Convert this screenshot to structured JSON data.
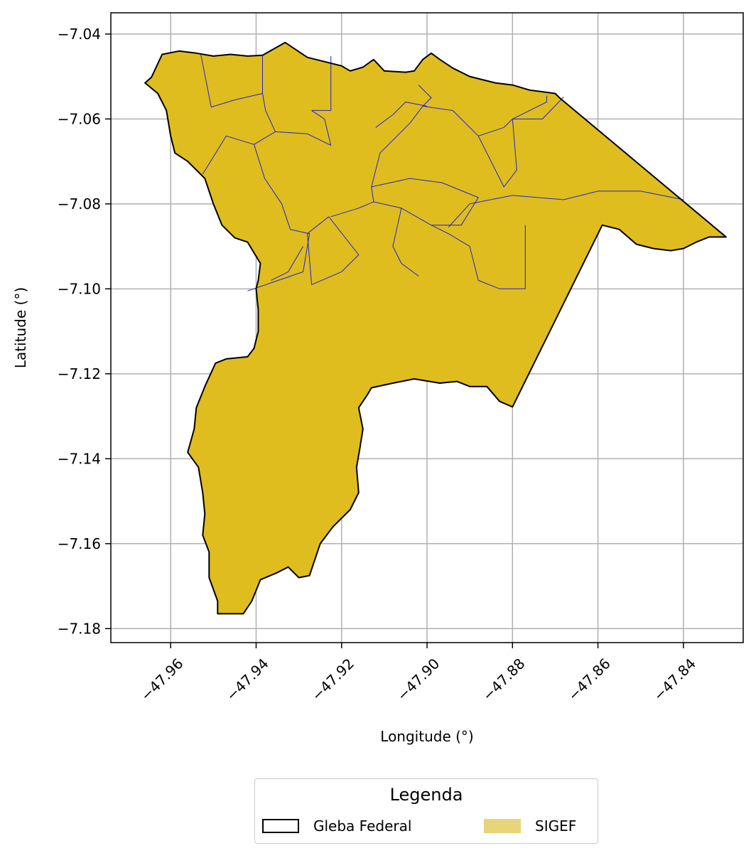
{
  "map": {
    "xlabel": "Longitude (°)",
    "ylabel": "Latitude (°)",
    "xlim": [
      -47.974,
      -47.826
    ],
    "ylim": [
      -7.1833,
      -7.035
    ],
    "x_ticks": [
      {
        "value": -47.96,
        "label": "−47.96"
      },
      {
        "value": -47.94,
        "label": "−47.94"
      },
      {
        "value": -47.92,
        "label": "−47.92"
      },
      {
        "value": -47.9,
        "label": "−47.90"
      },
      {
        "value": -47.88,
        "label": "−47.88"
      },
      {
        "value": -47.86,
        "label": "−47.86"
      },
      {
        "value": -47.84,
        "label": "−47.84"
      }
    ],
    "y_ticks": [
      {
        "value": -7.04,
        "label": "−7.04"
      },
      {
        "value": -7.06,
        "label": "−7.06"
      },
      {
        "value": -7.08,
        "label": "−7.08"
      },
      {
        "value": -7.1,
        "label": "−7.10"
      },
      {
        "value": -7.12,
        "label": "−7.12"
      },
      {
        "value": -7.14,
        "label": "−7.14"
      },
      {
        "value": -7.16,
        "label": "−7.16"
      },
      {
        "value": -7.18,
        "label": "−7.18"
      }
    ],
    "grid": true,
    "colors": {
      "sigef_fill": "#dfbd1f",
      "sigef_legend": "#e8d57a",
      "parcel_lines": "#2222cc",
      "gleba_outline": "#000000",
      "grid": "#b0b0b0"
    },
    "gleba_outline": [
      [
        -47.9645,
        -7.0502
      ],
      [
        -47.962,
        -7.0448
      ],
      [
        -47.958,
        -7.044
      ],
      [
        -47.954,
        -7.0445
      ],
      [
        -47.95,
        -7.0452
      ],
      [
        -47.946,
        -7.0448
      ],
      [
        -47.942,
        -7.0452
      ],
      [
        -47.9385,
        -7.045
      ],
      [
        -47.9332,
        -7.042
      ],
      [
        -47.928,
        -7.0455
      ],
      [
        -47.92,
        -7.0475
      ],
      [
        -47.918,
        -7.0487
      ],
      [
        -47.915,
        -7.0478
      ],
      [
        -47.9125,
        -7.046
      ],
      [
        -47.91,
        -7.0487
      ],
      [
        -47.905,
        -7.049
      ],
      [
        -47.903,
        -7.0487
      ],
      [
        -47.901,
        -7.046
      ],
      [
        -47.899,
        -7.0445
      ],
      [
        -47.897,
        -7.046
      ],
      [
        -47.894,
        -7.048
      ],
      [
        -47.89,
        -7.05
      ],
      [
        -47.884,
        -7.0515
      ],
      [
        -47.88,
        -7.052
      ],
      [
        -47.876,
        -7.0532
      ],
      [
        -47.87,
        -7.054
      ],
      [
        -47.869,
        -7.055
      ],
      [
        -47.83,
        -7.0878
      ],
      [
        -47.834,
        -7.0878
      ],
      [
        -47.837,
        -7.089
      ],
      [
        -47.84,
        -7.0905
      ],
      [
        -47.843,
        -7.091
      ],
      [
        -47.847,
        -7.0905
      ],
      [
        -47.851,
        -7.0895
      ],
      [
        -47.855,
        -7.086
      ],
      [
        -47.859,
        -7.085
      ],
      [
        -47.88,
        -7.1278
      ],
      [
        -47.883,
        -7.1265
      ],
      [
        -47.886,
        -7.123
      ],
      [
        -47.89,
        -7.123
      ],
      [
        -47.893,
        -7.1218
      ],
      [
        -47.897,
        -7.1222
      ],
      [
        -47.903,
        -7.1212
      ],
      [
        -47.908,
        -7.1222
      ],
      [
        -47.913,
        -7.1233
      ],
      [
        -47.914,
        -7.125
      ],
      [
        -47.916,
        -7.128
      ],
      [
        -47.915,
        -7.133
      ],
      [
        -47.9158,
        -7.138
      ],
      [
        -47.9165,
        -7.142
      ],
      [
        -47.916,
        -7.148
      ],
      [
        -47.918,
        -7.152
      ],
      [
        -47.922,
        -7.156
      ],
      [
        -47.925,
        -7.16
      ],
      [
        -47.9275,
        -7.1675
      ],
      [
        -47.93,
        -7.168
      ],
      [
        -47.9325,
        -7.1655
      ],
      [
        -47.935,
        -7.1668
      ],
      [
        -47.939,
        -7.1685
      ],
      [
        -47.941,
        -7.1735
      ],
      [
        -47.943,
        -7.1765
      ],
      [
        -47.949,
        -7.1765
      ],
      [
        -47.949,
        -7.1735
      ],
      [
        -47.951,
        -7.168
      ],
      [
        -47.951,
        -7.162
      ],
      [
        -47.9525,
        -7.158
      ],
      [
        -47.952,
        -7.153
      ],
      [
        -47.9525,
        -7.148
      ],
      [
        -47.9535,
        -7.142
      ],
      [
        -47.956,
        -7.1385
      ],
      [
        -47.9545,
        -7.133
      ],
      [
        -47.954,
        -7.128
      ],
      [
        -47.952,
        -7.123
      ],
      [
        -47.9495,
        -7.1175
      ],
      [
        -47.947,
        -7.1165
      ],
      [
        -47.942,
        -7.116
      ],
      [
        -47.9405,
        -7.114
      ],
      [
        -47.9395,
        -7.11
      ],
      [
        -47.9395,
        -7.105
      ],
      [
        -47.94,
        -7.1
      ],
      [
        -47.9395,
        -7.098
      ],
      [
        -47.939,
        -7.094
      ],
      [
        -47.942,
        -7.089
      ],
      [
        -47.945,
        -7.088
      ],
      [
        -47.948,
        -7.085
      ],
      [
        -47.95,
        -7.08
      ],
      [
        -47.952,
        -7.074
      ],
      [
        -47.956,
        -7.07
      ],
      [
        -47.959,
        -7.068
      ],
      [
        -47.96,
        -7.064
      ],
      [
        -47.961,
        -7.058
      ],
      [
        -47.963,
        -7.054
      ],
      [
        -47.966,
        -7.0515
      ],
      [
        -47.9645,
        -7.0502
      ]
    ],
    "parcel_lines": [
      [
        [
          -47.953,
          -7.0445
        ],
        [
          -47.9505,
          -7.0572
        ],
        [
          -47.945,
          -7.0555
        ],
        [
          -47.9385,
          -7.054
        ]
      ],
      [
        [
          -47.9385,
          -7.045
        ],
        [
          -47.9385,
          -7.054
        ],
        [
          -47.9378,
          -7.058
        ],
        [
          -47.9355,
          -7.063
        ],
        [
          -47.928,
          -7.0635
        ],
        [
          -47.9225,
          -7.0662
        ],
        [
          -47.924,
          -7.06
        ],
        [
          -47.927,
          -7.058
        ]
      ],
      [
        [
          -47.9225,
          -7.0452
        ],
        [
          -47.9225,
          -7.058
        ],
        [
          -47.927,
          -7.058
        ]
      ],
      [
        [
          -47.9525,
          -7.073
        ],
        [
          -47.947,
          -7.064
        ],
        [
          -47.9405,
          -7.066
        ],
        [
          -47.9355,
          -7.063
        ]
      ],
      [
        [
          -47.9405,
          -7.066
        ],
        [
          -47.938,
          -7.074
        ],
        [
          -47.934,
          -7.08
        ],
        [
          -47.932,
          -7.086
        ],
        [
          -47.9275,
          -7.087
        ],
        [
          -47.929,
          -7.096
        ],
        [
          -47.942,
          -7.1005
        ]
      ],
      [
        [
          -47.9365,
          -7.098
        ],
        [
          -47.9325,
          -7.096
        ],
        [
          -47.929,
          -7.09
        ]
      ],
      [
        [
          -47.923,
          -7.083
        ],
        [
          -47.928,
          -7.087
        ],
        [
          -47.927,
          -7.099
        ],
        [
          -47.92,
          -7.096
        ],
        [
          -47.916,
          -7.092
        ],
        [
          -47.923,
          -7.083
        ]
      ],
      [
        [
          -47.9225,
          -7.083
        ],
        [
          -47.916,
          -7.081
        ],
        [
          -47.9125,
          -7.0795
        ],
        [
          -47.913,
          -7.076
        ]
      ],
      [
        [
          -47.913,
          -7.076
        ],
        [
          -47.904,
          -7.074
        ],
        [
          -47.8965,
          -7.075
        ],
        [
          -47.888,
          -7.0785
        ],
        [
          -47.892,
          -7.085
        ],
        [
          -47.899,
          -7.085
        ],
        [
          -47.906,
          -7.081
        ],
        [
          -47.9125,
          -7.0795
        ]
      ],
      [
        [
          -47.906,
          -7.081
        ],
        [
          -47.908,
          -7.09
        ],
        [
          -47.906,
          -7.094
        ],
        [
          -47.902,
          -7.097
        ]
      ],
      [
        [
          -47.899,
          -7.085
        ],
        [
          -47.895,
          -7.087
        ],
        [
          -47.89,
          -7.09
        ],
        [
          -47.888,
          -7.098
        ],
        [
          -47.883,
          -7.1
        ],
        [
          -47.877,
          -7.1
        ],
        [
          -47.877,
          -7.095
        ],
        [
          -47.877,
          -7.085
        ]
      ],
      [
        [
          -47.895,
          -7.0855
        ],
        [
          -47.89,
          -7.08
        ],
        [
          -47.88,
          -7.078
        ],
        [
          -47.868,
          -7.079
        ],
        [
          -47.86,
          -7.077
        ],
        [
          -47.85,
          -7.077
        ],
        [
          -47.84,
          -7.079
        ]
      ],
      [
        [
          -47.913,
          -7.076
        ],
        [
          -47.911,
          -7.068
        ],
        [
          -47.904,
          -7.061
        ],
        [
          -47.901,
          -7.057
        ],
        [
          -47.899,
          -7.055
        ],
        [
          -47.902,
          -7.052
        ]
      ],
      [
        [
          -47.912,
          -7.062
        ],
        [
          -47.908,
          -7.059
        ],
        [
          -47.905,
          -7.056
        ],
        [
          -47.9,
          -7.057
        ]
      ],
      [
        [
          -47.901,
          -7.057
        ],
        [
          -47.894,
          -7.058
        ],
        [
          -47.888,
          -7.064
        ],
        [
          -47.882,
          -7.062
        ],
        [
          -47.88,
          -7.06
        ],
        [
          -47.872,
          -7.056
        ],
        [
          -47.872,
          -7.0545
        ]
      ],
      [
        [
          -47.888,
          -7.064
        ],
        [
          -47.882,
          -7.076
        ],
        [
          -47.879,
          -7.072
        ],
        [
          -47.88,
          -7.06
        ]
      ],
      [
        [
          -47.88,
          -7.06
        ],
        [
          -47.873,
          -7.06
        ],
        [
          -47.868,
          -7.0548
        ]
      ]
    ],
    "legend": {
      "title": "Legenda",
      "items": [
        "Gleba Federal",
        "SIGEF"
      ]
    }
  }
}
